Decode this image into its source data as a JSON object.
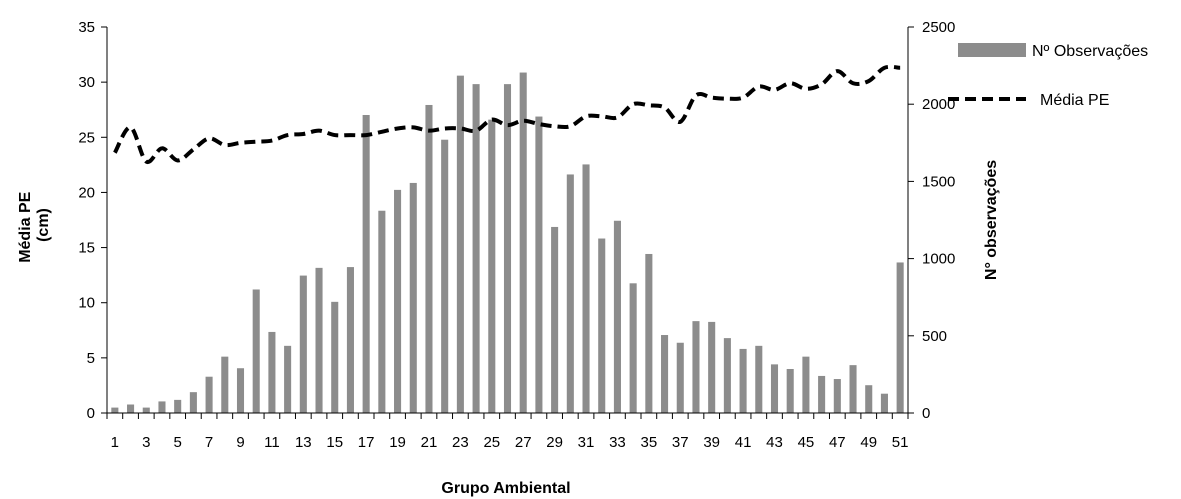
{
  "chart_data": {
    "type": "bar+line",
    "title": "",
    "xlabel": "Grupo Ambiental",
    "ylabel_left": "Média PE (cm)",
    "ylabel_left_lines": [
      "Média PE",
      "(cm)"
    ],
    "ylabel_right": "N° observações",
    "ylim_left": [
      0,
      35
    ],
    "ylim_right": [
      0,
      2500
    ],
    "yticks_left": [
      "0",
      "5",
      "10",
      "15",
      "20",
      "25",
      "30",
      "35"
    ],
    "yticks_right": [
      "0",
      "500",
      "1000",
      "1500",
      "2000",
      "2500"
    ],
    "xticks": [
      "1",
      "3",
      "5",
      "7",
      "9",
      "11",
      "13",
      "15",
      "17",
      "19",
      "21",
      "23",
      "25",
      "27",
      "29",
      "31",
      "33",
      "35",
      "37",
      "39",
      "41",
      "43",
      "45",
      "47",
      "49",
      "51"
    ],
    "x": [
      1,
      2,
      3,
      4,
      5,
      6,
      7,
      8,
      9,
      10,
      11,
      12,
      13,
      14,
      15,
      16,
      17,
      18,
      19,
      20,
      21,
      22,
      23,
      24,
      25,
      26,
      27,
      28,
      29,
      30,
      31,
      32,
      33,
      34,
      35,
      36,
      37,
      38,
      39,
      40,
      41,
      42,
      43,
      44,
      45,
      46,
      47,
      48,
      49,
      50,
      51
    ],
    "grid": false,
    "legend_position": "top-right",
    "colors": {
      "bars": "#8c8c8c",
      "line": "#000000"
    },
    "series": [
      {
        "name": "Nº Observações",
        "type": "bar",
        "axis": "right",
        "values": [
          35,
          55,
          35,
          75,
          85,
          135,
          235,
          365,
          290,
          800,
          525,
          435,
          890,
          940,
          720,
          945,
          1930,
          1310,
          1445,
          1490,
          1995,
          1770,
          2185,
          2130,
          1900,
          2130,
          2205,
          1920,
          1205,
          1545,
          1610,
          1130,
          1245,
          840,
          1030,
          505,
          455,
          595,
          590,
          485,
          415,
          435,
          315,
          285,
          365,
          240,
          220,
          310,
          180,
          125,
          975
        ]
      },
      {
        "name": "Média PE",
        "type": "line",
        "axis": "left",
        "values": [
          23.6,
          25.9,
          22.8,
          24.0,
          22.9,
          23.9,
          24.9,
          24.3,
          24.5,
          24.6,
          24.7,
          25.2,
          25.3,
          25.6,
          25.2,
          25.2,
          25.2,
          25.5,
          25.8,
          25.9,
          25.6,
          25.8,
          25.8,
          25.6,
          26.6,
          26.1,
          26.5,
          26.2,
          26.0,
          26.0,
          26.9,
          26.9,
          26.8,
          28.0,
          27.9,
          27.7,
          26.4,
          28.8,
          28.6,
          28.5,
          28.6,
          29.6,
          29.3,
          29.9,
          29.4,
          29.8,
          31.0,
          29.9,
          30.1,
          31.3,
          31.3
        ]
      }
    ]
  }
}
